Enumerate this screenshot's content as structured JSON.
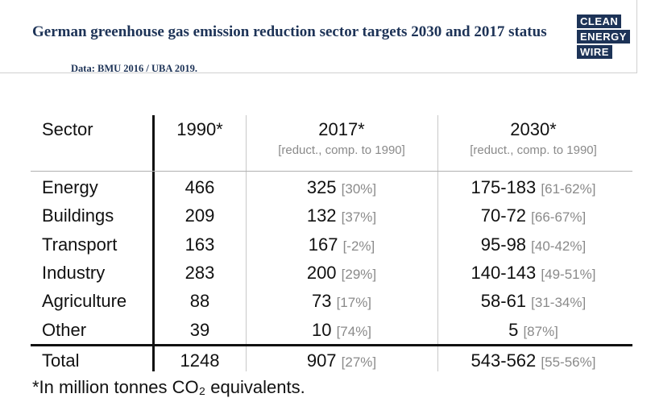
{
  "header": {
    "title": "German greenhouse gas emission reduction sector targets 2030 and 2017 status",
    "source": "Data: BMU 2016 / UBA 2019.",
    "logo": [
      "CLEAN",
      "ENERGY",
      "WIRE"
    ]
  },
  "table": {
    "columns": [
      {
        "label": "Sector"
      },
      {
        "label": "1990*"
      },
      {
        "label": "2017*",
        "note": "[reduct., comp. to 1990]"
      },
      {
        "label": "2030*",
        "note": "[reduct., comp. to 1990]"
      }
    ],
    "rows": [
      [
        "Energy",
        "466",
        "325",
        "[30%]",
        "175-183",
        "[61-62%]"
      ],
      [
        "Buildings",
        "209",
        "132",
        "[37%]",
        "70-72",
        "[66-67%]"
      ],
      [
        "Transport",
        "163",
        "167",
        "[-2%]",
        "95-98",
        "[40-42%]"
      ],
      [
        "Industry",
        "283",
        "200",
        "[29%]",
        "140-143",
        "[49-51%]"
      ],
      [
        "Agriculture",
        "88",
        "73",
        "[17%]",
        "58-61",
        "[31-34%]"
      ],
      [
        "Other",
        "39",
        "10",
        "[74%]",
        "5",
        "[87%]"
      ]
    ],
    "total": [
      "Total",
      "1248",
      "907",
      "[27%]",
      "543-562",
      "[55-56%]"
    ]
  },
  "footnote": "*In million tonnes CO₂ equivalents."
}
